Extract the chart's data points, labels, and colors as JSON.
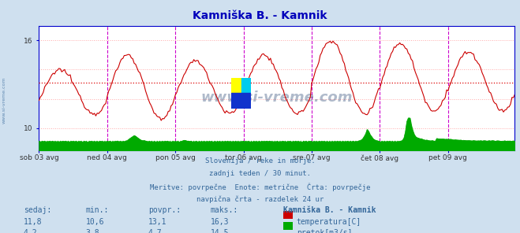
{
  "title": "Kamniška B. - Kamnik",
  "bg_color": "#cfe0ef",
  "plot_bg_color": "#ffffff",
  "grid_color": "#ffb0b0",
  "x_labels": [
    "sob 03 avg",
    "ned 04 avg",
    "pon 05 avg",
    "tor 06 avg",
    "sre 07 avg",
    "čet 08 avg",
    "pet 09 avg"
  ],
  "x_ticks": [
    0,
    48,
    96,
    144,
    192,
    240,
    288
  ],
  "ylim": [
    8.5,
    17.0
  ],
  "yticks": [
    10,
    16
  ],
  "temp_avg": 13.1,
  "flow_avg": 4.7,
  "flow_max": 14.5,
  "temp_color": "#cc0000",
  "flow_color": "#00aa00",
  "avg_temp_color": "#dd0000",
  "avg_flow_color": "#00bb00",
  "vline_color": "#cc00cc",
  "axis_color": "#0000cc",
  "subtitle_lines": [
    "Slovenija / reke in morje.",
    "zadnji teden / 30 minut.",
    "Meritve: povrpečne  Enote: metrične  Črta: povrpečje",
    "navpična črta - razdelek 24 ur"
  ],
  "text_color": "#336699",
  "table_header": [
    "sedaj:",
    "min.:",
    "povpr.:",
    "maks.:",
    "Kamniška B. - Kamnik"
  ],
  "row1_vals": [
    "11,8",
    "10,6",
    "13,1",
    "16,3"
  ],
  "row2_vals": [
    "4,2",
    "3,8",
    "4,7",
    "14,5"
  ],
  "row1_label": "temperatura[C]",
  "row2_label": "pretok[m3/s]",
  "watermark": "www.si-vreme.com",
  "watermark_color": "#1a3a6a",
  "n_points": 336,
  "logo_colors": [
    "#ffff00",
    "#00ccee",
    "#1122cc",
    "#1122cc"
  ]
}
